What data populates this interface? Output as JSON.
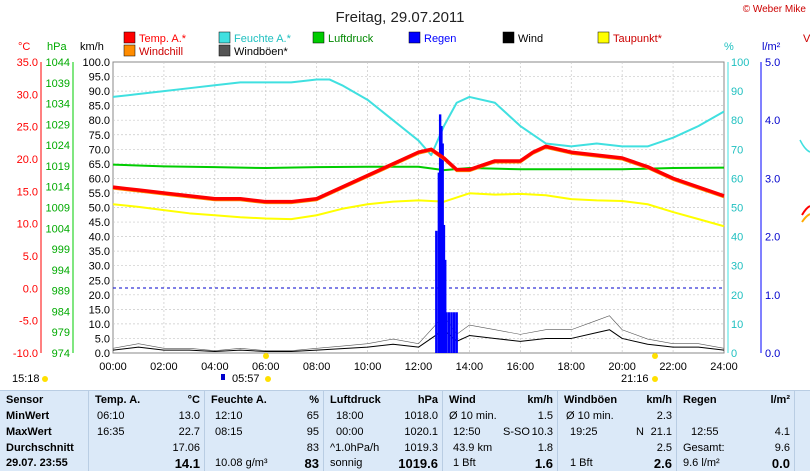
{
  "header": {
    "title": "Freitag, 29.07.2011",
    "credit": "© Weber Mike"
  },
  "colors": {
    "temp": "#ff0000",
    "humidity": "#40e0e0",
    "pressure": "#00cc00",
    "rain": "#0000ff",
    "wind": "#000000",
    "dewpoint": "#ffff00",
    "windchill": "#ff8c00",
    "gusts": "#555555",
    "grid": "#c8c8c8"
  },
  "legend": {
    "row1": [
      "Temp. A.*",
      "Feuchte A.*",
      "Luftdruck",
      "Regen",
      "Wind",
      "Taupunkt*"
    ],
    "row2": [
      "Windchill",
      "Windböen*"
    ]
  },
  "axes": {
    "temp_unit": "°C",
    "pressure_unit": "hPa",
    "wind_unit": "km/h",
    "humidity_unit": "%",
    "rain_unit": "l/m²",
    "temp_ticks": [
      "35.0",
      "30.0",
      "25.0",
      "20.0",
      "15.0",
      "10.0",
      "5.0",
      "0.0",
      "-5.0",
      "-10.0"
    ],
    "pressure_ticks": [
      "1044",
      "1039",
      "1034",
      "1029",
      "1024",
      "1019",
      "1014",
      "1009",
      "1004",
      "999",
      "994",
      "989",
      "984",
      "979",
      "974"
    ],
    "wind_ticks": [
      "100.0",
      "95.0",
      "90.0",
      "85.0",
      "80.0",
      "75.0",
      "70.0",
      "65.0",
      "60.0",
      "55.0",
      "50.0",
      "45.0",
      "40.0",
      "35.0",
      "30.0",
      "25.0",
      "20.0",
      "15.0",
      "10.0",
      "5.0",
      "0.0"
    ],
    "humidity_ticks": [
      "100",
      "90",
      "80",
      "70",
      "60",
      "50",
      "40",
      "30",
      "20",
      "10",
      "0"
    ],
    "rain_ticks": [
      "5.0",
      "4.0",
      "3.0",
      "2.0",
      "1.0",
      "0.0"
    ],
    "x_ticks": [
      "00:00",
      "02:00",
      "04:00",
      "06:00",
      "08:00",
      "10:00",
      "12:00",
      "14:00",
      "16:00",
      "18:00",
      "20:00",
      "22:00",
      "24:00"
    ]
  },
  "sun": {
    "sunrise": "05:57",
    "sunset": "21:16",
    "left_time": "15:18"
  },
  "chart_data": {
    "type": "line",
    "title": "Freitag, 29.07.2011",
    "x_range_hours": [
      0,
      24
    ],
    "ylim_wind": [
      0,
      100
    ],
    "series": [
      {
        "name": "Temp. A.*",
        "axis": "wind",
        "x": [
          0,
          1,
          2,
          3,
          4,
          5,
          6,
          7,
          8,
          9,
          10,
          11,
          12,
          12.5,
          13,
          13.5,
          14,
          15,
          16,
          16.5,
          17,
          18,
          19,
          20,
          21,
          22,
          23,
          24
        ],
        "y": [
          57,
          56,
          55,
          54,
          53,
          53,
          52,
          52,
          53,
          57,
          61,
          65,
          69,
          70,
          67,
          63,
          63,
          66,
          66,
          69,
          71,
          69,
          68,
          67,
          64,
          60,
          57,
          54
        ]
      },
      {
        "name": "Feuchte A.*",
        "axis": "humidity",
        "x": [
          0,
          1,
          2,
          3,
          4,
          5,
          6,
          7,
          8,
          8.5,
          9,
          10,
          11,
          12,
          12.5,
          13,
          13.5,
          14,
          15,
          16,
          17,
          18,
          19,
          20,
          21,
          22,
          23,
          24
        ],
        "y": [
          88,
          89,
          90,
          91,
          92,
          93,
          93,
          93,
          94,
          94,
          92,
          87,
          80,
          73,
          68,
          78,
          86,
          88,
          86,
          78,
          72,
          71,
          72,
          71,
          71,
          74,
          78,
          83
        ]
      },
      {
        "name": "Luftdruck",
        "axis": "pressure",
        "x": [
          0,
          2,
          4,
          6,
          8,
          10,
          12,
          13,
          14,
          16,
          18,
          20,
          22,
          24
        ],
        "y": [
          1019.3,
          1018.9,
          1018.7,
          1018.5,
          1018.7,
          1018.8,
          1018.8,
          1018.0,
          1018.5,
          1018.2,
          1018.2,
          1018.2,
          1018.5,
          1018.6
        ]
      },
      {
        "name": "Taupunkt*",
        "axis": "temp",
        "x": [
          0,
          1,
          2,
          3,
          4,
          5,
          6,
          7,
          8,
          9,
          10,
          11,
          12,
          13,
          14,
          15,
          16,
          17,
          18,
          19,
          20,
          21,
          22,
          23,
          24
        ],
        "y": [
          13.0,
          12.6,
          12.1,
          11.6,
          11.3,
          11.0,
          10.8,
          10.7,
          11.3,
          12.3,
          13.0,
          13.4,
          13.6,
          13.4,
          14.7,
          14.5,
          14.6,
          14.4,
          13.8,
          13.6,
          13.5,
          13.0,
          11.8,
          10.7,
          9.6
        ]
      },
      {
        "name": "Wind",
        "axis": "wind",
        "x": [
          0,
          1,
          2,
          3,
          4,
          5,
          6,
          7,
          8,
          9,
          10,
          11,
          12,
          12.5,
          13,
          13.5,
          14,
          15,
          16,
          17,
          18,
          19,
          19.5,
          20,
          21,
          22,
          23,
          24
        ],
        "y": [
          1,
          2,
          1,
          1,
          0.5,
          1,
          0.5,
          0.5,
          1,
          1.5,
          2,
          3,
          2,
          5,
          8,
          4,
          6,
          5,
          4,
          5,
          5,
          7,
          8,
          5,
          3,
          2,
          2,
          1
        ]
      },
      {
        "name": "Regen",
        "axis": "rain",
        "x": [
          12.7,
          12.8,
          12.85,
          12.9,
          12.95,
          13.0,
          13.05,
          13.1,
          13.2,
          13.3,
          13.4,
          13.5
        ],
        "y": [
          2.1,
          3.1,
          4.1,
          3.9,
          3.6,
          2.2,
          1.6,
          0.7,
          0.7,
          0.7,
          0.7,
          0.7
        ]
      }
    ]
  },
  "stats": {
    "rows": [
      "Sensor",
      "MinWert",
      "MaxWert",
      "Durchschnitt",
      "29.07. 23:55"
    ],
    "temp": {
      "header": "Temp. A.",
      "unit": "°C",
      "min_time": "06:10",
      "min": "13.0",
      "max_time": "16:35",
      "max": "22.7",
      "avg": "17.06",
      "current": "14.1"
    },
    "humidity": {
      "header": "Feuchte A.",
      "unit": "%",
      "min_time": "12:10",
      "min": "65",
      "max_time": "08:15",
      "max": "95",
      "avg": "83",
      "abs": "10.08 g/m³",
      "current": "83"
    },
    "pressure": {
      "header": "Luftdruck",
      "unit": "hPa",
      "min_time": "18:00",
      "min": "1018.0",
      "max_time": "00:00",
      "max": "1020.1",
      "trend_label": "^1.0hPa/h",
      "avg": "1019.3",
      "state": "sonnig",
      "current": "1019.6"
    },
    "wind": {
      "header": "Wind",
      "unit": "km/h",
      "min_label": "Ø 10 min.",
      "min": "1.5",
      "max_time": "12:50",
      "max_dir": "S-SO",
      "max": "10.3",
      "dist": "43.9 km",
      "avg": "1.8",
      "bft": "1 Bft",
      "current": "1.6"
    },
    "gusts": {
      "header": "Windböen",
      "unit": "km/h",
      "min_label": "Ø 10 min.",
      "min": "2.3",
      "max_time": "19:25",
      "max_dir": "N",
      "max": "21.1",
      "avg": "2.5",
      "bft": "1 Bft",
      "current": "2.6"
    },
    "rain": {
      "header": "Regen",
      "unit": "l/m²",
      "max_time": "12:55",
      "max": "4.1",
      "total_label": "Gesamt:",
      "total": "9.6",
      "today": "9.6 l/m²",
      "current": "0.0"
    }
  }
}
